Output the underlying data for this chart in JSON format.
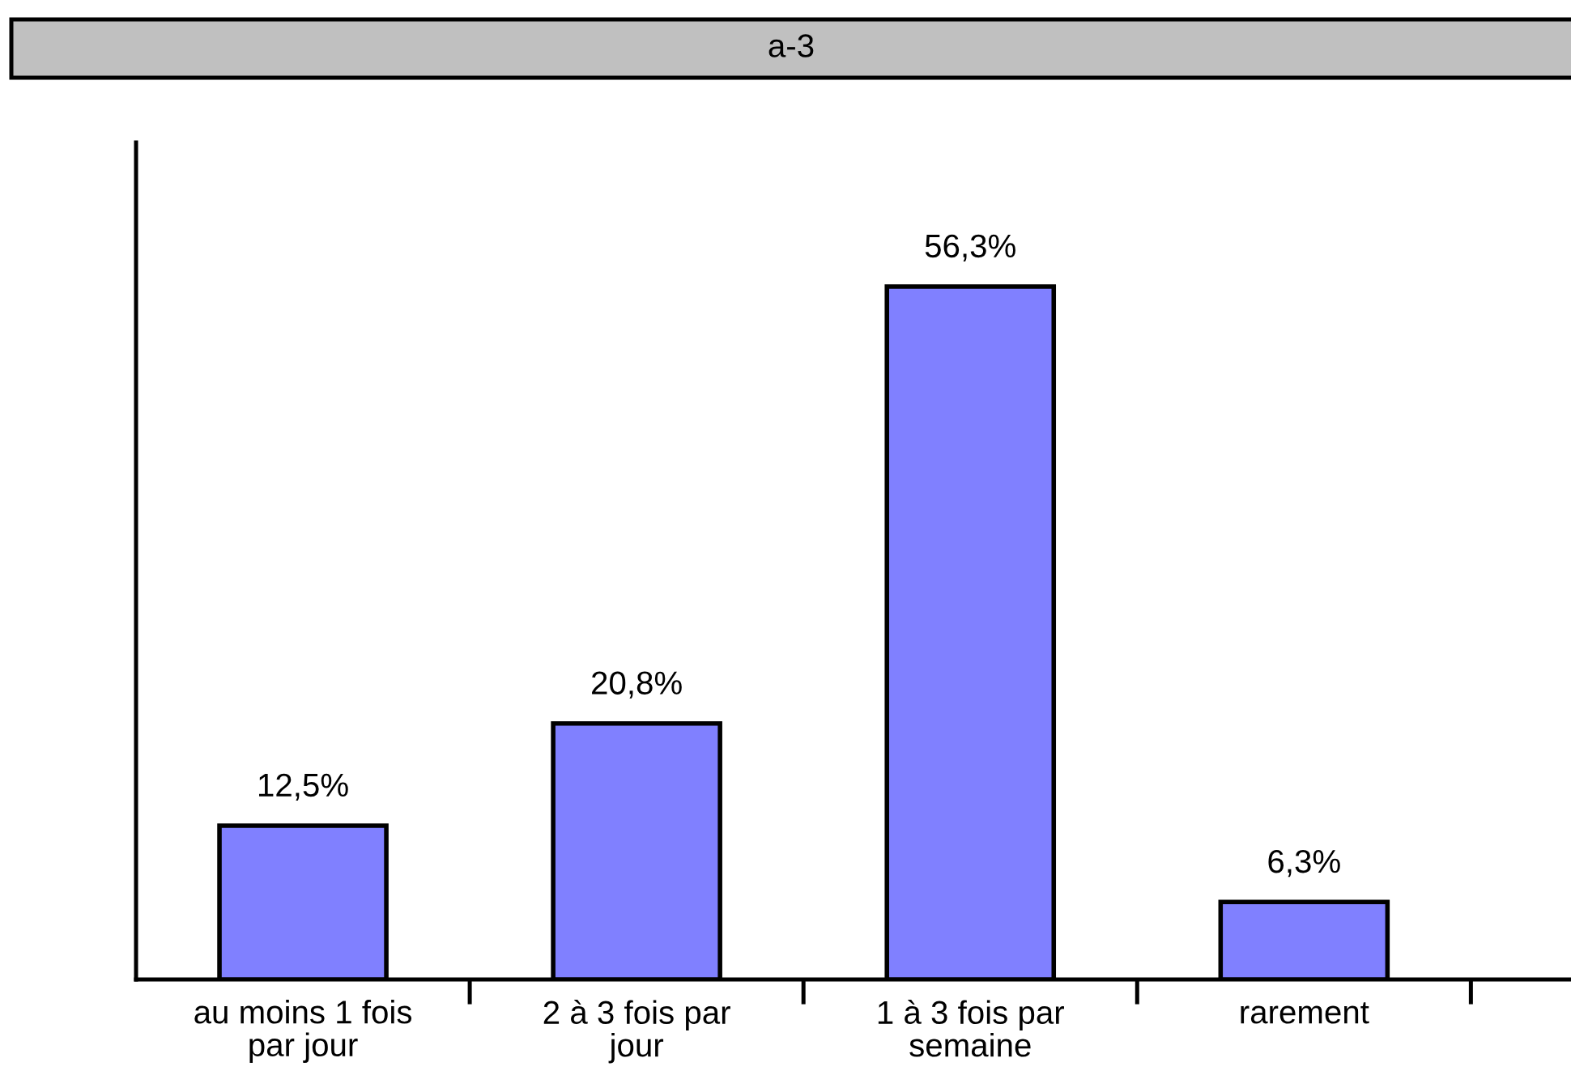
{
  "chart_data": {
    "type": "bar",
    "title": "a-3",
    "categories": [
      "au moins 1 fois\npar jour",
      "2 à 3 fois par\njour",
      "1 à 3 fois par\nsemaine",
      "rarement"
    ],
    "values": [
      12.5,
      20.8,
      56.3,
      6.3
    ],
    "color": "#8080ff",
    "value_labels": [
      "12,5%",
      "20,8%",
      "56,3%",
      "6,3%"
    ],
    "ylim": [
      0,
      68
    ],
    "tick_labels": "x"
  }
}
